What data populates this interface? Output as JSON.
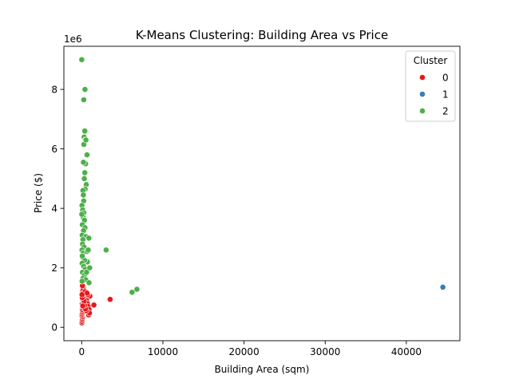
{
  "chart_data": {
    "type": "scatter",
    "title": "K-Means Clustering: Building Area vs Price",
    "xlabel": "Building Area (sqm)",
    "ylabel": "Price ($)",
    "y_offset_text": "1e6",
    "xlim": [
      -2200,
      46600
    ],
    "ylim": [
      -450000,
      9450000
    ],
    "x_ticks": [
      0,
      10000,
      20000,
      30000,
      40000
    ],
    "x_tick_labels": [
      "0",
      "10000",
      "20000",
      "30000",
      "40000"
    ],
    "y_ticks": [
      0,
      2000000,
      4000000,
      6000000,
      8000000
    ],
    "y_tick_labels": [
      "0",
      "2",
      "4",
      "6",
      "8"
    ],
    "grid": false,
    "legend": {
      "title": "Cluster",
      "position": "top-right"
    },
    "series": [
      {
        "name": "0",
        "color": "#e41a1c",
        "points": [
          [
            20,
            150000
          ],
          [
            40,
            200000
          ],
          [
            60,
            250000
          ],
          [
            80,
            300000
          ],
          [
            100,
            350000
          ],
          [
            30,
            400000
          ],
          [
            50,
            450000
          ],
          [
            90,
            500000
          ],
          [
            120,
            550000
          ],
          [
            70,
            600000
          ],
          [
            110,
            650000
          ],
          [
            140,
            700000
          ],
          [
            160,
            750000
          ],
          [
            60,
            800000
          ],
          [
            180,
            850000
          ],
          [
            200,
            900000
          ],
          [
            100,
            950000
          ],
          [
            220,
            1000000
          ],
          [
            80,
            1050000
          ],
          [
            250,
            1100000
          ],
          [
            150,
            1150000
          ],
          [
            300,
            1200000
          ],
          [
            120,
            1250000
          ],
          [
            180,
            1300000
          ],
          [
            90,
            1400000
          ],
          [
            400,
            1200000
          ],
          [
            500,
            1000000
          ],
          [
            600,
            900000
          ],
          [
            700,
            800000
          ],
          [
            800,
            700000
          ],
          [
            900,
            600000
          ],
          [
            1000,
            1050000
          ],
          [
            850,
            420000
          ],
          [
            950,
            480000
          ],
          [
            750,
            1100000
          ],
          [
            650,
            1150000
          ],
          [
            550,
            560000
          ],
          [
            450,
            620000
          ],
          [
            350,
            740000
          ],
          [
            300,
            880000
          ],
          [
            1500,
            750000
          ],
          [
            3500,
            940000
          ],
          [
            70,
            1000000
          ],
          [
            40,
            1100000
          ],
          [
            130,
            720000
          ]
        ]
      },
      {
        "name": "1",
        "color": "#377eb8",
        "points": [
          [
            44500,
            1350000
          ]
        ]
      },
      {
        "name": "2",
        "color": "#4daf4a",
        "points": [
          [
            0,
            9000000
          ],
          [
            400,
            8000000
          ],
          [
            250,
            7650000
          ],
          [
            380,
            6600000
          ],
          [
            300,
            6400000
          ],
          [
            450,
            6300000
          ],
          [
            260,
            6150000
          ],
          [
            520,
            6300000
          ],
          [
            650,
            5800000
          ],
          [
            480,
            5500000
          ],
          [
            380,
            5200000
          ],
          [
            320,
            5000000
          ],
          [
            560,
            4800000
          ],
          [
            420,
            4650000
          ],
          [
            150,
            4600000
          ],
          [
            200,
            4450000
          ],
          [
            240,
            4250000
          ],
          [
            30,
            4100000
          ],
          [
            120,
            3950000
          ],
          [
            260,
            3850000
          ],
          [
            180,
            3700000
          ],
          [
            340,
            3600000
          ],
          [
            80,
            3450000
          ],
          [
            400,
            3350000
          ],
          [
            220,
            3250000
          ],
          [
            60,
            3100000
          ],
          [
            520,
            3050000
          ],
          [
            150,
            2950000
          ],
          [
            100,
            2800000
          ],
          [
            280,
            2700000
          ],
          [
            30,
            2600000
          ],
          [
            190,
            2500000
          ],
          [
            650,
            2550000
          ],
          [
            700,
            2200000
          ],
          [
            880,
            3000000
          ],
          [
            120,
            2350000
          ],
          [
            350,
            2250000
          ],
          [
            50,
            2150000
          ],
          [
            240,
            2050000
          ],
          [
            430,
            1950000
          ],
          [
            980,
            2000000
          ],
          [
            90,
            1850000
          ],
          [
            310,
            1750000
          ],
          [
            160,
            1650000
          ],
          [
            500,
            1600000
          ],
          [
            900,
            1500000
          ],
          [
            40,
            1550000
          ],
          [
            600,
            1850000
          ],
          [
            800,
            2600000
          ],
          [
            70,
            2400000
          ],
          [
            3000,
            2600000
          ],
          [
            6200,
            1180000
          ],
          [
            6800,
            1280000
          ],
          [
            10,
            3800000
          ],
          [
            210,
            5550000
          ]
        ]
      }
    ]
  }
}
